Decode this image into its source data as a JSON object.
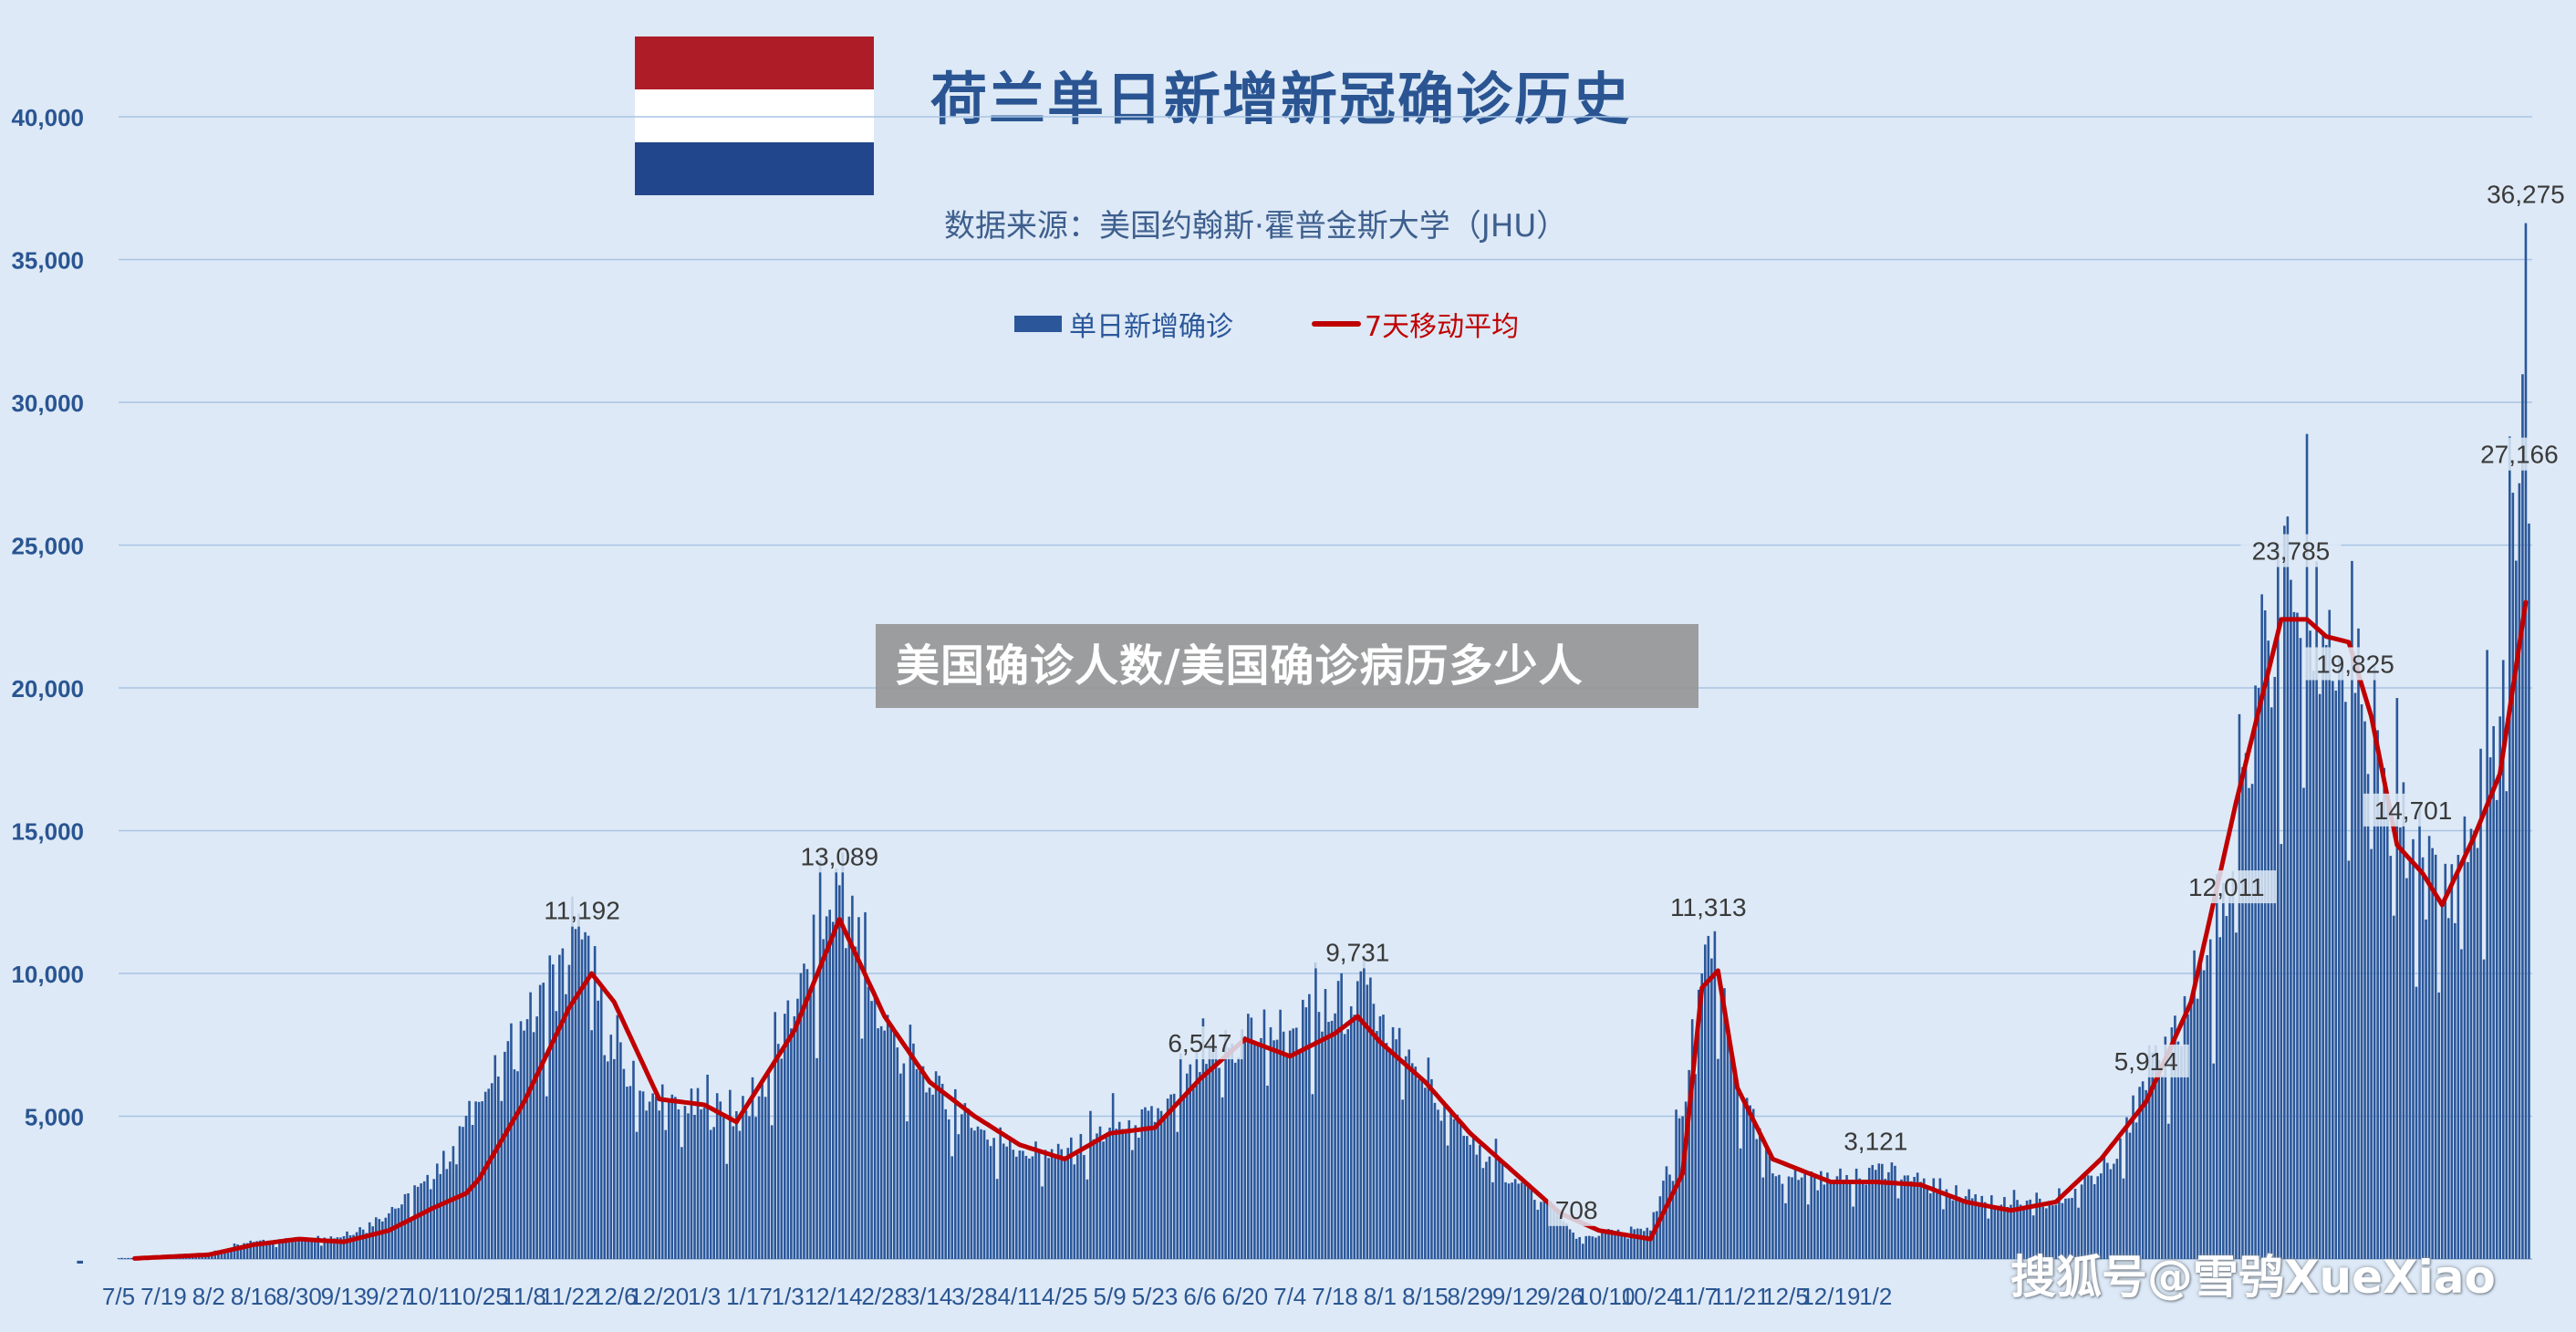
{
  "header": {
    "title": "荷兰单日新增新冠确诊历史",
    "subtitle": "数据来源：美国约翰斯·霍普金斯大学（JHU）"
  },
  "legend": {
    "bars": "单日新增确诊",
    "line": "7天移动平均"
  },
  "overlay_text": "美国确诊人数/美国确诊病历多少人",
  "watermark": "搜狐号@雪鸮XueXiao",
  "flag": {
    "colors": [
      "#ae1c28",
      "#ffffff",
      "#21468b"
    ]
  },
  "colors": {
    "bars": "#2b579a",
    "line": "#c00000",
    "axis_text": "#2a5592",
    "grid": "#aac4e4",
    "background": "#dde9f6"
  },
  "chart_data": {
    "type": "bar",
    "title": "荷兰单日新增新冠确诊历史",
    "ylim": [
      0,
      40000
    ],
    "yticks": [
      0,
      5000,
      10000,
      15000,
      20000,
      25000,
      30000,
      35000,
      40000
    ],
    "ytick_labels": [
      "-",
      "5,000",
      "10,000",
      "15,000",
      "20,000",
      "25,000",
      "30,000",
      "35,000",
      "40,000"
    ],
    "grid": true,
    "legend_position": "top-center",
    "xtick_labels": [
      "7/5",
      "7/19",
      "8/2",
      "8/16",
      "8/30",
      "9/13",
      "9/27",
      "10/11",
      "10/25",
      "11/8",
      "11/22",
      "12/6",
      "12/20",
      "1/3",
      "1/17",
      "1/31",
      "2/14",
      "2/28",
      "3/14",
      "3/28",
      "4/11",
      "4/25",
      "5/9",
      "5/23",
      "6/6",
      "6/20",
      "7/4",
      "7/18",
      "8/1",
      "8/15",
      "8/29",
      "9/12",
      "9/26",
      "10/10",
      "10/24",
      "11/7",
      "11/21",
      "12/5",
      "12/19",
      "1/2"
    ],
    "series": [
      {
        "name": "单日新增确诊",
        "style": "bar",
        "keypoints": [
          [
            0,
            30
          ],
          [
            14,
            60
          ],
          [
            28,
            200
          ],
          [
            42,
            600
          ],
          [
            56,
            700
          ],
          [
            70,
            800
          ],
          [
            84,
            1600
          ],
          [
            98,
            2800
          ],
          [
            112,
            5500
          ],
          [
            126,
            8000
          ],
          [
            140,
            10300
          ],
          [
            144,
            11192
          ],
          [
            154,
            7000
          ],
          [
            168,
            5200
          ],
          [
            182,
            5300
          ],
          [
            196,
            5000
          ],
          [
            210,
            8500
          ],
          [
            220,
            12000
          ],
          [
            224,
            13089
          ],
          [
            238,
            8000
          ],
          [
            252,
            6000
          ],
          [
            266,
            4500
          ],
          [
            280,
            3800
          ],
          [
            294,
            3600
          ],
          [
            308,
            4600
          ],
          [
            322,
            4800
          ],
          [
            336,
            6547
          ],
          [
            350,
            7800
          ],
          [
            364,
            8000
          ],
          [
            378,
            8600
          ],
          [
            385,
            9731
          ],
          [
            392,
            8500
          ],
          [
            406,
            6000
          ],
          [
            420,
            4000
          ],
          [
            434,
            2800
          ],
          [
            448,
            1500
          ],
          [
            453,
            708
          ],
          [
            462,
            900
          ],
          [
            476,
            1000
          ],
          [
            486,
            5000
          ],
          [
            492,
            10000
          ],
          [
            494,
            11313
          ],
          [
            503,
            6000
          ],
          [
            514,
            3000
          ],
          [
            532,
            2700
          ],
          [
            546,
            3121
          ],
          [
            560,
            2700
          ],
          [
            574,
            2200
          ],
          [
            588,
            1900
          ],
          [
            602,
            1900
          ],
          [
            616,
            3000
          ],
          [
            630,
            5914
          ],
          [
            644,
            9000
          ],
          [
            655,
            12011
          ],
          [
            665,
            20000
          ],
          [
            675,
            23785
          ],
          [
            686,
            21500
          ],
          [
            695,
            19825
          ],
          [
            705,
            16000
          ],
          [
            713,
            14701
          ],
          [
            722,
            12500
          ],
          [
            732,
            15000
          ],
          [
            740,
            19000
          ],
          [
            746,
            27166
          ],
          [
            748,
            36275
          ]
        ]
      },
      {
        "name": "7天移动平均",
        "style": "line",
        "keypoints": [
          [
            5,
            20
          ],
          [
            28,
            150
          ],
          [
            42,
            500
          ],
          [
            56,
            700
          ],
          [
            70,
            600
          ],
          [
            84,
            1000
          ],
          [
            98,
            1800
          ],
          [
            108,
            2300
          ],
          [
            112,
            2800
          ],
          [
            126,
            5500
          ],
          [
            140,
            8800
          ],
          [
            147,
            10000
          ],
          [
            154,
            9000
          ],
          [
            168,
            5600
          ],
          [
            182,
            5400
          ],
          [
            192,
            4800
          ],
          [
            210,
            8000
          ],
          [
            224,
            11900
          ],
          [
            238,
            8500
          ],
          [
            252,
            6200
          ],
          [
            266,
            5000
          ],
          [
            280,
            4000
          ],
          [
            294,
            3500
          ],
          [
            308,
            4400
          ],
          [
            322,
            4600
          ],
          [
            336,
            6300
          ],
          [
            350,
            7700
          ],
          [
            364,
            7100
          ],
          [
            378,
            7900
          ],
          [
            385,
            8500
          ],
          [
            392,
            7600
          ],
          [
            406,
            6200
          ],
          [
            420,
            4400
          ],
          [
            434,
            3000
          ],
          [
            448,
            1600
          ],
          [
            460,
            1000
          ],
          [
            476,
            700
          ],
          [
            486,
            3000
          ],
          [
            492,
            9500
          ],
          [
            497,
            10100
          ],
          [
            503,
            6000
          ],
          [
            514,
            3500
          ],
          [
            532,
            2700
          ],
          [
            546,
            2700
          ],
          [
            560,
            2600
          ],
          [
            574,
            2000
          ],
          [
            588,
            1700
          ],
          [
            602,
            2000
          ],
          [
            616,
            3500
          ],
          [
            630,
            5500
          ],
          [
            644,
            9000
          ],
          [
            658,
            16000
          ],
          [
            672,
            22400
          ],
          [
            680,
            22400
          ],
          [
            686,
            21800
          ],
          [
            693,
            21600
          ],
          [
            700,
            19000
          ],
          [
            708,
            14500
          ],
          [
            716,
            13500
          ],
          [
            722,
            12400
          ],
          [
            732,
            14800
          ],
          [
            740,
            17000
          ],
          [
            748,
            23000
          ]
        ]
      }
    ],
    "data_labels": [
      {
        "x": 144,
        "value": "11,192"
      },
      {
        "x": 224,
        "value": "13,089"
      },
      {
        "x": 336,
        "value": "6,547"
      },
      {
        "x": 385,
        "value": "9,731"
      },
      {
        "x": 453,
        "value": "708"
      },
      {
        "x": 494,
        "value": "11,313"
      },
      {
        "x": 546,
        "value": "3,121"
      },
      {
        "x": 630,
        "value": "5,914"
      },
      {
        "x": 655,
        "value": "12,011"
      },
      {
        "x": 675,
        "value": "23,785"
      },
      {
        "x": 695,
        "value": "19,825"
      },
      {
        "x": 713,
        "value": "14,701"
      },
      {
        "x": 746,
        "value": "27,166"
      },
      {
        "x": 748,
        "value": "36,275"
      }
    ]
  }
}
